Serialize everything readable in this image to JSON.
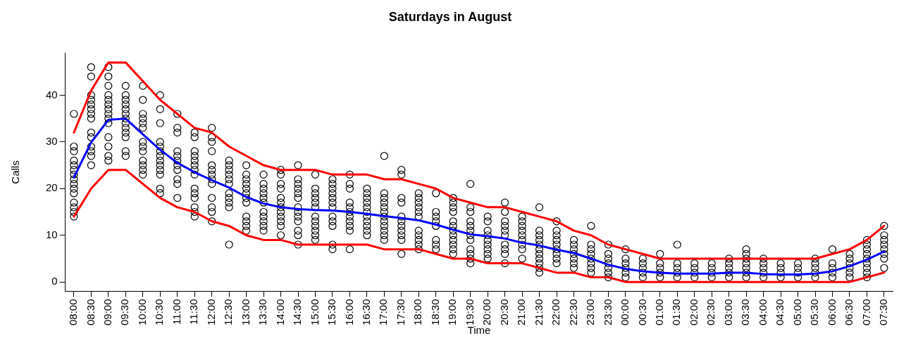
{
  "chart_data": {
    "type": "scatter",
    "title": "Saturdays in August",
    "xlabel": "Time",
    "ylabel": "Calls",
    "categories": [
      "08:00",
      "08:30",
      "09:00",
      "09:30",
      "10:00",
      "10:30",
      "11:00",
      "11:30",
      "12:00",
      "12:30",
      "13:00",
      "13:30",
      "14:00",
      "14:30",
      "15:00",
      "15:30",
      "16:00",
      "16:30",
      "17:00",
      "17:30",
      "18:00",
      "18:30",
      "19:00",
      "19:30",
      "20:00",
      "20:30",
      "21:00",
      "21:30",
      "22:00",
      "22:30",
      "23:00",
      "23:30",
      "00:00",
      "00:30",
      "01:00",
      "01:30",
      "02:00",
      "02:30",
      "03:00",
      "03:30",
      "04:00",
      "04:30",
      "05:00",
      "05:30",
      "06:00",
      "06:30",
      "07:00",
      "07:30"
    ],
    "ylim": [
      -2,
      49
    ],
    "yticks": [
      0,
      10,
      20,
      30,
      40
    ],
    "grid": false,
    "series": [
      {
        "color": "#000000",
        "marker": "circle",
        "x": [
          "08:00",
          "08:00",
          "08:00",
          "08:00",
          "08:00",
          "08:00",
          "08:00",
          "08:00",
          "08:00",
          "08:00",
          "08:00",
          "08:00",
          "08:00",
          "08:00",
          "08:00",
          "08:30",
          "08:30",
          "08:30",
          "08:30",
          "08:30",
          "08:30",
          "08:30",
          "08:30",
          "08:30",
          "08:30",
          "08:30",
          "08:30",
          "08:30",
          "08:30",
          "09:00",
          "09:00",
          "09:00",
          "09:00",
          "09:00",
          "09:00",
          "09:00",
          "09:00",
          "09:00",
          "09:00",
          "09:00",
          "09:00",
          "09:00",
          "09:00",
          "09:30",
          "09:30",
          "09:30",
          "09:30",
          "09:30",
          "09:30",
          "09:30",
          "09:30",
          "09:30",
          "09:30",
          "09:30",
          "09:30",
          "09:30",
          "10:00",
          "10:00",
          "10:00",
          "10:00",
          "10:00",
          "10:00",
          "10:00",
          "10:00",
          "10:00",
          "10:00",
          "10:00",
          "10:00",
          "10:00",
          "10:30",
          "10:30",
          "10:30",
          "10:30",
          "10:30",
          "10:30",
          "10:30",
          "10:30",
          "10:30",
          "10:30",
          "10:30",
          "10:30",
          "10:30",
          "11:00",
          "11:00",
          "11:00",
          "11:00",
          "11:00",
          "11:00",
          "11:00",
          "11:00",
          "11:00",
          "11:00",
          "11:00",
          "11:30",
          "11:30",
          "11:30",
          "11:30",
          "11:30",
          "11:30",
          "11:30",
          "11:30",
          "11:30",
          "11:30",
          "11:30",
          "11:30",
          "11:30",
          "11:30",
          "12:00",
          "12:00",
          "12:00",
          "12:00",
          "12:00",
          "12:00",
          "12:00",
          "12:00",
          "12:00",
          "12:00",
          "12:00",
          "12:00",
          "12:00",
          "12:30",
          "12:30",
          "12:30",
          "12:30",
          "12:30",
          "12:30",
          "12:30",
          "12:30",
          "12:30",
          "12:30",
          "12:30",
          "13:00",
          "13:00",
          "13:00",
          "13:00",
          "13:00",
          "13:00",
          "13:00",
          "13:00",
          "13:00",
          "13:00",
          "13:00",
          "13:00",
          "13:30",
          "13:30",
          "13:30",
          "13:30",
          "13:30",
          "13:30",
          "13:30",
          "13:30",
          "13:30",
          "13:30",
          "13:30",
          "14:00",
          "14:00",
          "14:00",
          "14:00",
          "14:00",
          "14:00",
          "14:00",
          "14:00",
          "14:00",
          "14:00",
          "14:00",
          "14:00",
          "14:30",
          "14:30",
          "14:30",
          "14:30",
          "14:30",
          "14:30",
          "14:30",
          "14:30",
          "14:30",
          "14:30",
          "14:30",
          "14:30",
          "14:30",
          "15:00",
          "15:00",
          "15:00",
          "15:00",
          "15:00",
          "15:00",
          "15:00",
          "15:00",
          "15:00",
          "15:00",
          "15:00",
          "15:00",
          "15:30",
          "15:30",
          "15:30",
          "15:30",
          "15:30",
          "15:30",
          "15:30",
          "15:30",
          "15:30",
          "15:30",
          "15:30",
          "15:30",
          "16:00",
          "16:00",
          "16:00",
          "16:00",
          "16:00",
          "16:00",
          "16:00",
          "16:00",
          "16:00",
          "16:00",
          "16:00",
          "16:30",
          "16:30",
          "16:30",
          "16:30",
          "16:30",
          "16:30",
          "16:30",
          "16:30",
          "16:30",
          "16:30",
          "16:30",
          "17:00",
          "17:00",
          "17:00",
          "17:00",
          "17:00",
          "17:00",
          "17:00",
          "17:00",
          "17:00",
          "17:00",
          "17:00",
          "17:00",
          "17:30",
          "17:30",
          "17:30",
          "17:30",
          "17:30",
          "17:30",
          "17:30",
          "17:30",
          "17:30",
          "17:30",
          "17:30",
          "18:00",
          "18:00",
          "18:00",
          "18:00",
          "18:00",
          "18:00",
          "18:00",
          "18:00",
          "18:00",
          "18:00",
          "18:00",
          "18:30",
          "18:30",
          "18:30",
          "18:30",
          "18:30",
          "18:30",
          "18:30",
          "18:30",
          "19:00",
          "19:00",
          "19:00",
          "19:00",
          "19:00",
          "19:00",
          "19:00",
          "19:00",
          "19:00",
          "19:00",
          "19:00",
          "19:00",
          "19:30",
          "19:30",
          "19:30",
          "19:30",
          "19:30",
          "19:30",
          "19:30",
          "19:30",
          "19:30",
          "19:30",
          "19:30",
          "19:30",
          "20:00",
          "20:00",
          "20:00",
          "20:00",
          "20:00",
          "20:00",
          "20:00",
          "20:00",
          "20:00",
          "20:30",
          "20:30",
          "20:30",
          "20:30",
          "20:30",
          "20:30",
          "20:30",
          "20:30",
          "20:30",
          "20:30",
          "21:00",
          "21:00",
          "21:00",
          "21:00",
          "21:00",
          "21:00",
          "21:00",
          "21:00",
          "21:00",
          "21:30",
          "21:30",
          "21:30",
          "21:30",
          "21:30",
          "21:30",
          "21:30",
          "21:30",
          "21:30",
          "21:30",
          "21:30",
          "22:00",
          "22:00",
          "22:00",
          "22:00",
          "22:00",
          "22:00",
          "22:00",
          "22:00",
          "22:00",
          "22:30",
          "22:30",
          "22:30",
          "22:30",
          "22:30",
          "22:30",
          "22:30",
          "23:00",
          "23:00",
          "23:00",
          "23:00",
          "23:00",
          "23:00",
          "23:00",
          "23:00",
          "23:30",
          "23:30",
          "23:30",
          "23:30",
          "23:30",
          "23:30",
          "23:30",
          "00:00",
          "00:00",
          "00:00",
          "00:00",
          "00:00",
          "00:00",
          "00:30",
          "00:30",
          "00:30",
          "00:30",
          "00:30",
          "01:00",
          "01:00",
          "01:00",
          "01:00",
          "01:00",
          "01:30",
          "01:30",
          "01:30",
          "01:30",
          "01:30",
          "02:00",
          "02:00",
          "02:00",
          "02:00",
          "02:30",
          "02:30",
          "02:30",
          "02:30",
          "03:00",
          "03:00",
          "03:00",
          "03:00",
          "03:00",
          "03:30",
          "03:30",
          "03:30",
          "03:30",
          "03:30",
          "03:30",
          "03:30",
          "04:00",
          "04:00",
          "04:00",
          "04:00",
          "04:00",
          "04:30",
          "04:30",
          "04:30",
          "04:30",
          "05:00",
          "05:00",
          "05:00",
          "05:00",
          "05:30",
          "05:30",
          "05:30",
          "05:30",
          "05:30",
          "06:00",
          "06:00",
          "06:00",
          "06:00",
          "06:00",
          "06:30",
          "06:30",
          "06:30",
          "06:30",
          "06:30",
          "06:30",
          "07:00",
          "07:00",
          "07:00",
          "07:00",
          "07:00",
          "07:00",
          "07:00",
          "07:00",
          "07:00",
          "07:30",
          "07:30",
          "07:30",
          "07:30",
          "07:30",
          "07:30",
          "07:30",
          "07:30"
        ],
        "values": [
          36,
          29,
          28,
          26,
          25,
          24,
          23,
          22,
          21,
          20,
          19,
          17,
          16,
          15,
          14,
          46,
          44,
          40,
          39,
          38,
          37,
          36,
          35,
          32,
          31,
          29,
          28,
          27,
          25,
          46,
          44,
          42,
          40,
          39,
          38,
          37,
          36,
          35,
          34,
          31,
          29,
          27,
          26,
          42,
          40,
          39,
          38,
          37,
          36,
          35,
          34,
          33,
          32,
          31,
          28,
          27,
          42,
          39,
          36,
          35,
          34,
          33,
          30,
          29,
          28,
          26,
          25,
          24,
          23,
          40,
          37,
          34,
          30,
          29,
          28,
          27,
          26,
          25,
          24,
          23,
          20,
          19,
          36,
          33,
          32,
          28,
          27,
          26,
          25,
          24,
          22,
          21,
          18,
          32,
          31,
          28,
          27,
          26,
          25,
          24,
          23,
          20,
          19,
          18,
          16,
          15,
          14,
          33,
          31,
          30,
          28,
          25,
          24,
          23,
          22,
          21,
          18,
          16,
          15,
          13,
          26,
          25,
          24,
          23,
          22,
          21,
          19,
          18,
          17,
          16,
          8,
          25,
          23,
          22,
          21,
          20,
          19,
          18,
          17,
          14,
          13,
          12,
          11,
          23,
          21,
          20,
          19,
          18,
          17,
          15,
          14,
          13,
          12,
          11,
          24,
          23,
          21,
          20,
          18,
          17,
          16,
          15,
          14,
          13,
          12,
          10,
          25,
          22,
          21,
          20,
          19,
          18,
          16,
          15,
          14,
          13,
          11,
          10,
          8,
          23,
          20,
          19,
          18,
          17,
          16,
          14,
          13,
          12,
          11,
          10,
          9,
          22,
          21,
          20,
          19,
          18,
          17,
          16,
          14,
          13,
          12,
          8,
          7,
          23,
          21,
          20,
          17,
          16,
          15,
          14,
          13,
          12,
          11,
          7,
          20,
          19,
          18,
          17,
          16,
          15,
          14,
          13,
          12,
          11,
          10,
          27,
          19,
          18,
          17,
          16,
          15,
          14,
          13,
          12,
          11,
          10,
          9,
          24,
          23,
          18,
          17,
          14,
          13,
          12,
          11,
          10,
          9,
          6,
          19,
          18,
          17,
          16,
          15,
          14,
          11,
          10,
          9,
          8,
          7,
          19,
          15,
          14,
          13,
          12,
          9,
          8,
          7,
          18,
          17,
          16,
          15,
          13,
          12,
          11,
          10,
          9,
          8,
          7,
          6,
          21,
          16,
          15,
          13,
          12,
          11,
          10,
          9,
          7,
          6,
          5,
          4,
          14,
          13,
          11,
          10,
          9,
          8,
          7,
          6,
          5,
          17,
          15,
          13,
          12,
          11,
          10,
          8,
          7,
          6,
          4,
          14,
          13,
          12,
          11,
          10,
          9,
          8,
          7,
          5,
          16,
          11,
          10,
          9,
          8,
          7,
          6,
          5,
          4,
          3,
          2,
          13,
          11,
          10,
          9,
          8,
          7,
          6,
          5,
          4,
          9,
          8,
          7,
          6,
          5,
          4,
          3,
          12,
          8,
          7,
          6,
          5,
          4,
          3,
          2,
          8,
          6,
          5,
          4,
          3,
          2,
          1,
          7,
          5,
          4,
          3,
          2,
          1,
          5,
          4,
          3,
          2,
          1,
          6,
          4,
          3,
          2,
          1,
          8,
          4,
          3,
          2,
          1,
          4,
          3,
          2,
          1,
          4,
          3,
          2,
          1,
          5,
          4,
          3,
          2,
          1,
          7,
          6,
          5,
          4,
          3,
          2,
          1,
          5,
          4,
          3,
          2,
          1,
          4,
          3,
          2,
          1,
          4,
          3,
          2,
          1,
          5,
          4,
          3,
          2,
          1,
          7,
          4,
          3,
          2,
          1,
          6,
          5,
          4,
          3,
          2,
          1,
          9,
          8,
          7,
          6,
          5,
          4,
          3,
          2,
          1,
          12,
          10,
          9,
          8,
          7,
          6,
          5,
          3
        ]
      },
      {
        "type": "line",
        "color": "#ff0000",
        "marker": "none",
        "values": [
          32,
          41,
          47,
          47,
          43,
          39,
          36,
          33,
          32,
          29,
          27,
          25,
          24,
          24,
          24,
          23,
          23,
          23,
          22,
          22,
          21,
          20,
          18,
          17,
          16,
          16,
          15,
          14,
          13,
          11,
          10,
          8,
          7,
          6,
          5,
          5,
          5,
          5,
          5,
          5,
          5,
          5,
          5,
          5,
          6,
          7,
          9,
          12
        ]
      },
      {
        "type": "line",
        "color": "#0000ff",
        "marker": "none",
        "values": [
          22.4,
          29.9,
          34.7,
          35,
          31.6,
          28.3,
          25.5,
          23.5,
          21.8,
          20.2,
          18.2,
          16.8,
          16,
          15.6,
          15.4,
          15.3,
          15,
          14.6,
          14.1,
          13.7,
          13.2,
          12.3,
          11.2,
          10.2,
          9.8,
          9.3,
          8.4,
          7.8,
          6.9,
          6.2,
          5,
          3.7,
          2.8,
          2.3,
          2,
          1.8,
          1.8,
          1.8,
          2,
          2,
          1.7,
          1.6,
          1.6,
          1.8,
          2.3,
          3.4,
          4.8,
          6.5
        ]
      },
      {
        "type": "line",
        "color": "#ff0000",
        "marker": "none",
        "values": [
          14,
          20,
          24,
          24,
          21,
          18,
          16,
          15,
          13,
          12,
          10,
          9,
          9,
          8,
          8,
          8,
          8,
          8,
          7,
          7,
          7,
          6,
          5,
          5,
          4,
          4,
          4,
          3,
          2,
          2,
          1,
          1,
          0,
          0,
          0,
          0,
          0,
          0,
          0,
          0,
          0,
          0,
          0,
          0,
          0,
          0,
          1,
          2
        ]
      }
    ]
  }
}
